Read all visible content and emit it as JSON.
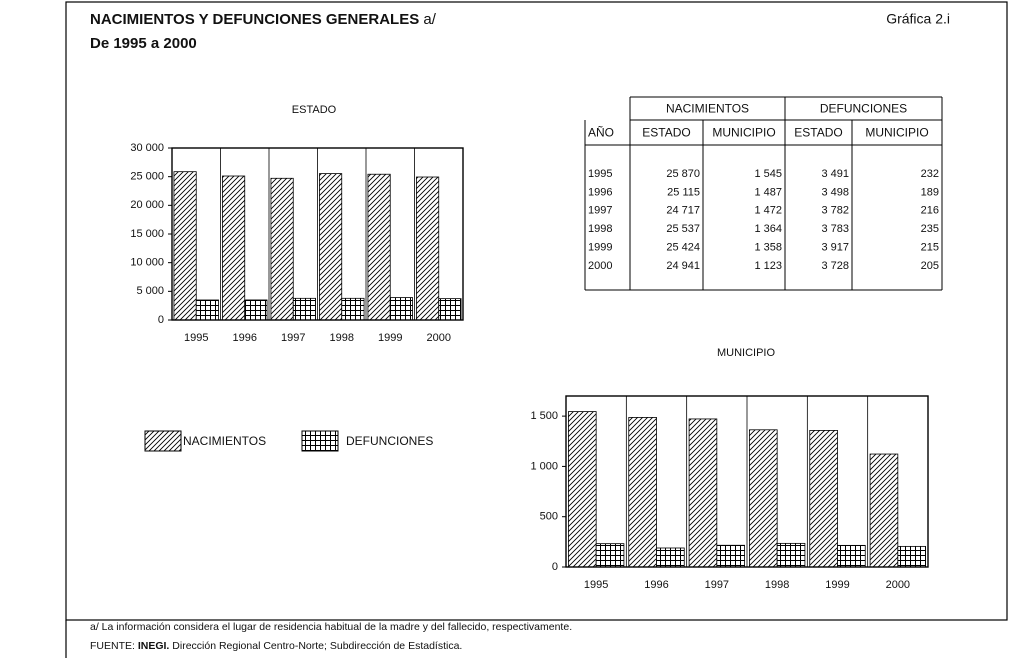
{
  "header": {
    "title": "NACIMIENTOS Y DEFUNCIONES GENERALES",
    "title_note": "a/",
    "subtitle": "De 1995 a 2000",
    "graph_label": "Gráfica 2.i"
  },
  "chart_data": [
    {
      "type": "bar",
      "title": "ESTADO",
      "categories": [
        "1995",
        "1996",
        "1997",
        "1998",
        "1999",
        "2000"
      ],
      "series": [
        {
          "name": "NACIMIENTOS",
          "color": "#000000",
          "pattern": "hatch",
          "values": [
            25870,
            25115,
            24717,
            25537,
            25424,
            24941
          ]
        },
        {
          "name": "DEFUNCIONES",
          "color": "#000000",
          "pattern": "grid",
          "values": [
            3491,
            3498,
            3782,
            3783,
            3917,
            3728
          ]
        }
      ],
      "ylim": [
        0,
        30000
      ],
      "yticks": [
        0,
        {
          "value": 5000,
          "label": "5 000"
        },
        {
          "value": 10000,
          "label": "10 000"
        },
        {
          "value": 15000,
          "label": "15 000"
        },
        {
          "value": 20000,
          "label": "20 000"
        },
        {
          "value": 25000,
          "label": "25 000"
        },
        {
          "value": 30000,
          "label": "30 000"
        }
      ]
    },
    {
      "type": "bar",
      "title": "MUNICIPIO",
      "categories": [
        "1995",
        "1996",
        "1997",
        "1998",
        "1999",
        "2000"
      ],
      "series": [
        {
          "color": "#000000",
          "pattern": "hatch",
          "values": [
            1545,
            1487,
            1472,
            1364,
            1358,
            1123
          ]
        },
        {
          "color": "#000000",
          "pattern": "grid",
          "values": [
            232,
            189,
            216,
            235,
            215,
            205
          ]
        }
      ],
      "ylim": [
        0,
        1700
      ],
      "yticks": [
        0,
        500,
        {
          "value": 1000,
          "label": "1 000"
        },
        {
          "value": 1500,
          "label": "1 500"
        }
      ]
    }
  ],
  "table": {
    "group_headers": [
      "NACIMIENTOS",
      "DEFUNCIONES"
    ],
    "columns": [
      "AÑO",
      "ESTADO",
      "MUNICIPIO",
      "ESTADO",
      "MUNICIPIO"
    ],
    "rows": [
      [
        "1995",
        "25 870",
        "1 545",
        "3 491",
        "232"
      ],
      [
        "1996",
        "25 115",
        "1 487",
        "3 498",
        "189"
      ],
      [
        "1997",
        "24 717",
        "1 472",
        "3 782",
        "216"
      ],
      [
        "1998",
        "25 537",
        "1 364",
        "3 783",
        "235"
      ],
      [
        "1999",
        "25 424",
        "1 358",
        "3 917",
        "215"
      ],
      [
        "2000",
        "24 941",
        "1 123",
        "3 728",
        "205"
      ]
    ]
  },
  "footer": {
    "note": "a/ La información considera el lugar de residencia habitual de la madre y del fallecido, respectivamente.",
    "source_label": "FUENTE:",
    "source_org": "INEGI.",
    "source_text": "Dirección Regional Centro-Norte; Subdirección de Estadística."
  }
}
